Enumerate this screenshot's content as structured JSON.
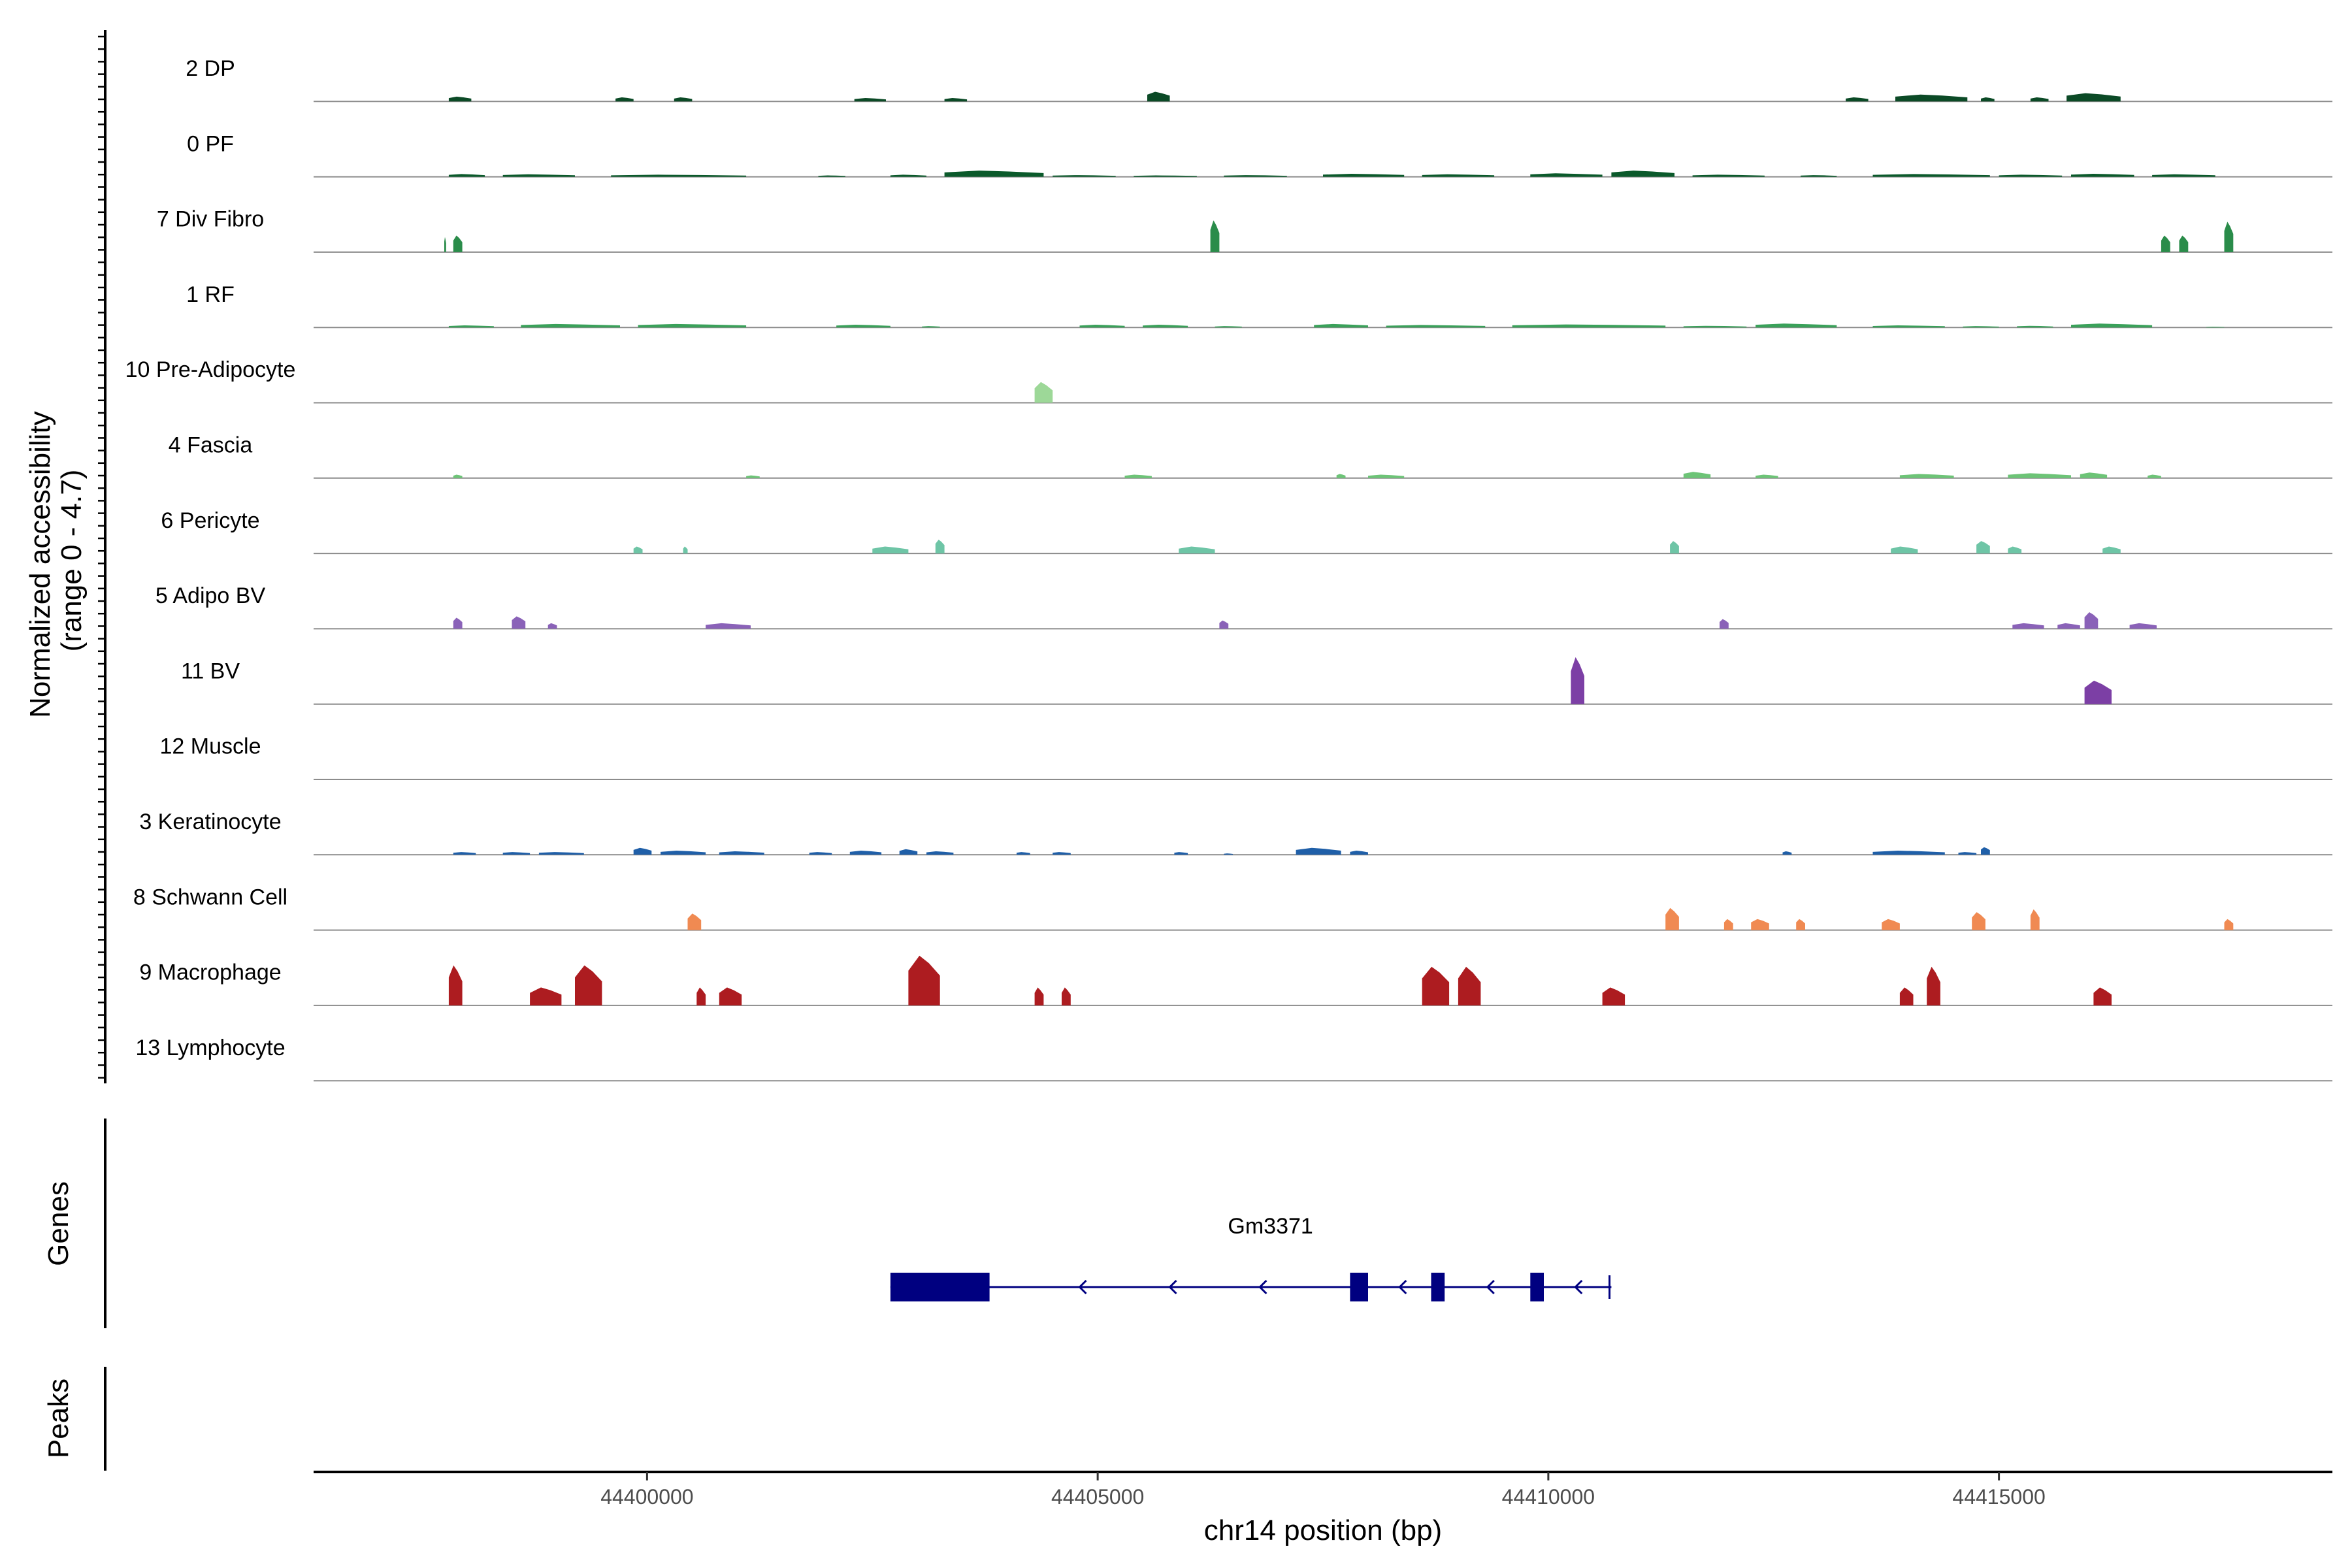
{
  "chart_data": {
    "type": "area",
    "title": "",
    "chromosome": "chr14",
    "xlabel": "chr14 position (bp)",
    "ylabel": "Normalized accessibility\n(range 0 - 4.7)",
    "ylim": [
      0,
      4.7
    ],
    "xlim": [
      44396300,
      44418700
    ],
    "x_ticks": [
      44400000,
      44405000,
      44410000,
      44415000
    ],
    "x_tick_labels": [
      "44400000",
      "44405000",
      "44410000",
      "44415000"
    ],
    "panels": {
      "genes": "Genes",
      "peaks": "Peaks"
    },
    "genes": [
      {
        "name": "Gm3371",
        "start": 44402700,
        "end": 44410700,
        "strand": "-",
        "color": "#000080",
        "exons": [
          [
            44402700,
            44403800
          ],
          [
            44407800,
            44408000
          ],
          [
            44408700,
            44408850
          ],
          [
            44409800,
            44409950
          ],
          [
            44410650,
            44410700
          ]
        ]
      }
    ],
    "peaks": [],
    "series": [
      {
        "name": "2 DP",
        "color": "#0b4a26",
        "regions": [
          [
            44397800,
            44398050,
            0.35
          ],
          [
            44399650,
            44399850,
            0.3
          ],
          [
            44400300,
            44400500,
            0.3
          ],
          [
            44402300,
            44402650,
            0.25
          ],
          [
            44403300,
            44403550,
            0.25
          ],
          [
            44405550,
            44405800,
            0.7
          ],
          [
            44413300,
            44413550,
            0.3
          ],
          [
            44413850,
            44414650,
            0.5
          ],
          [
            44414800,
            44414950,
            0.3
          ],
          [
            44415350,
            44415550,
            0.3
          ],
          [
            44415750,
            44416350,
            0.6
          ]
        ]
      },
      {
        "name": "0 PF",
        "color": "#0b5a2b",
        "regions": [
          [
            44397800,
            44398200,
            0.2
          ],
          [
            44398400,
            44399200,
            0.18
          ],
          [
            44399600,
            44401100,
            0.15
          ],
          [
            44401900,
            44402200,
            0.1
          ],
          [
            44402700,
            44403100,
            0.15
          ],
          [
            44403300,
            44404400,
            0.45
          ],
          [
            44404500,
            44405200,
            0.12
          ],
          [
            44405400,
            44406100,
            0.1
          ],
          [
            44406400,
            44407100,
            0.12
          ],
          [
            44407500,
            44408400,
            0.22
          ],
          [
            44408600,
            44409400,
            0.18
          ],
          [
            44409800,
            44410600,
            0.25
          ],
          [
            44410700,
            44411400,
            0.45
          ],
          [
            44411600,
            44412400,
            0.15
          ],
          [
            44412800,
            44413200,
            0.12
          ],
          [
            44413600,
            44414900,
            0.2
          ],
          [
            44415000,
            44415700,
            0.15
          ],
          [
            44415800,
            44416500,
            0.22
          ],
          [
            44416700,
            44417400,
            0.18
          ]
        ]
      },
      {
        "name": "7 Div Fibro",
        "color": "#2a8c4a",
        "regions": [
          [
            44397750,
            44397770,
            1.1
          ],
          [
            44397850,
            44397950,
            1.2
          ],
          [
            44406250,
            44406350,
            2.3
          ],
          [
            44416800,
            44416900,
            1.2
          ],
          [
            44417000,
            44417100,
            1.2
          ],
          [
            44417500,
            44417600,
            2.2
          ]
        ]
      },
      {
        "name": "1 RF",
        "color": "#3aa15a",
        "regions": [
          [
            44397800,
            44398300,
            0.15
          ],
          [
            44398600,
            44399700,
            0.25
          ],
          [
            44399900,
            44401100,
            0.25
          ],
          [
            44402100,
            44402700,
            0.2
          ],
          [
            44403050,
            44403250,
            0.1
          ],
          [
            44404800,
            44405300,
            0.2
          ],
          [
            44405500,
            44406000,
            0.2
          ],
          [
            44406300,
            44406600,
            0.1
          ],
          [
            44407400,
            44408000,
            0.25
          ],
          [
            44408200,
            44409300,
            0.18
          ],
          [
            44409600,
            44411300,
            0.22
          ],
          [
            44411500,
            44412200,
            0.12
          ],
          [
            44412300,
            44413200,
            0.28
          ],
          [
            44413600,
            44414400,
            0.15
          ],
          [
            44414600,
            44415000,
            0.1
          ],
          [
            44415200,
            44415600,
            0.12
          ],
          [
            44415800,
            44416700,
            0.28
          ],
          [
            44417300,
            44417500,
            0.05
          ]
        ]
      },
      {
        "name": "10 Pre-Adipocyte",
        "color": "#9dd898",
        "regions": [
          [
            44404300,
            44404500,
            1.5
          ]
        ]
      },
      {
        "name": "4 Fascia",
        "color": "#6dc477",
        "regions": [
          [
            44397850,
            44397950,
            0.25
          ],
          [
            44401100,
            44401250,
            0.2
          ],
          [
            44405300,
            44405600,
            0.25
          ],
          [
            44407650,
            44407750,
            0.3
          ],
          [
            44408000,
            44408400,
            0.25
          ],
          [
            44411500,
            44411800,
            0.45
          ],
          [
            44412300,
            44412550,
            0.25
          ],
          [
            44413900,
            44414500,
            0.3
          ],
          [
            44415100,
            44415800,
            0.35
          ],
          [
            44415900,
            44416200,
            0.4
          ],
          [
            44416650,
            44416800,
            0.25
          ]
        ]
      },
      {
        "name": "6 Pericyte",
        "color": "#6ec5a6",
        "regions": [
          [
            44399850,
            44399950,
            0.5
          ],
          [
            44400400,
            44400450,
            0.5
          ],
          [
            44402500,
            44402900,
            0.5
          ],
          [
            44403200,
            44403300,
            1.0
          ],
          [
            44405900,
            44406300,
            0.5
          ],
          [
            44411350,
            44411450,
            0.9
          ],
          [
            44413800,
            44414100,
            0.5
          ],
          [
            44414750,
            44414900,
            0.9
          ],
          [
            44415100,
            44415250,
            0.5
          ],
          [
            44416150,
            44416350,
            0.5
          ]
        ]
      },
      {
        "name": "5 Adipo BV",
        "color": "#8a62b8",
        "regions": [
          [
            44397850,
            44397950,
            0.8
          ],
          [
            44398500,
            44398650,
            0.9
          ],
          [
            44398900,
            44399000,
            0.4
          ],
          [
            44400650,
            44401150,
            0.4
          ],
          [
            44406350,
            44406450,
            0.6
          ],
          [
            44411900,
            44412000,
            0.7
          ],
          [
            44415150,
            44415500,
            0.4
          ],
          [
            44415650,
            44415900,
            0.4
          ],
          [
            44415950,
            44416100,
            1.2
          ],
          [
            44416450,
            44416750,
            0.4
          ]
        ]
      },
      {
        "name": "11 BV",
        "color": "#7c3fa5",
        "regions": [
          [
            44410250,
            44410400,
            3.4
          ],
          [
            44415950,
            44416250,
            1.7
          ]
        ]
      },
      {
        "name": "12 Muscle",
        "color": "#6a51a3",
        "regions": []
      },
      {
        "name": "3 Keratinocyte",
        "color": "#1f5fa8",
        "regions": [
          [
            44397850,
            44398100,
            0.2
          ],
          [
            44398400,
            44398700,
            0.2
          ],
          [
            44398800,
            44399300,
            0.2
          ],
          [
            44399850,
            44400050,
            0.5
          ],
          [
            44400150,
            44400650,
            0.3
          ],
          [
            44400800,
            44401300,
            0.25
          ],
          [
            44401800,
            44402050,
            0.2
          ],
          [
            44402250,
            44402600,
            0.3
          ],
          [
            44402800,
            44403000,
            0.4
          ],
          [
            44403100,
            44403400,
            0.25
          ],
          [
            44404100,
            44404250,
            0.2
          ],
          [
            44404500,
            44404700,
            0.2
          ],
          [
            44405850,
            44406000,
            0.2
          ],
          [
            44406400,
            44406500,
            0.1
          ],
          [
            44407200,
            44407700,
            0.5
          ],
          [
            44407800,
            44408000,
            0.3
          ],
          [
            44412600,
            44412700,
            0.25
          ],
          [
            44413600,
            44414400,
            0.3
          ],
          [
            44414550,
            44414750,
            0.2
          ],
          [
            44414800,
            44414900,
            0.55
          ]
        ]
      },
      {
        "name": "8 Schwann Cell",
        "color": "#f08a52",
        "regions": [
          [
            44400450,
            44400600,
            1.2
          ],
          [
            44411300,
            44411450,
            1.6
          ],
          [
            44411950,
            44412050,
            0.8
          ],
          [
            44412250,
            44412450,
            0.8
          ],
          [
            44412750,
            44412850,
            0.8
          ],
          [
            44413700,
            44413900,
            0.8
          ],
          [
            44414700,
            44414850,
            1.3
          ],
          [
            44415350,
            44415450,
            1.5
          ],
          [
            44417500,
            44417600,
            0.8
          ]
        ]
      },
      {
        "name": "9 Macrophage",
        "color": "#ad1c20",
        "regions": [
          [
            44397800,
            44397950,
            2.9
          ],
          [
            44398700,
            44399050,
            1.3
          ],
          [
            44399200,
            44399500,
            2.9
          ],
          [
            44400550,
            44400650,
            1.3
          ],
          [
            44400800,
            44401050,
            1.3
          ],
          [
            44402900,
            44403250,
            3.6
          ],
          [
            44404300,
            44404400,
            1.3
          ],
          [
            44404600,
            44404700,
            1.3
          ],
          [
            44408600,
            44408900,
            2.8
          ],
          [
            44409000,
            44409250,
            2.8
          ],
          [
            44410600,
            44410850,
            1.3
          ],
          [
            44413900,
            44414050,
            1.3
          ],
          [
            44414200,
            44414350,
            2.8
          ],
          [
            44416050,
            44416250,
            1.3
          ]
        ]
      },
      {
        "name": "13 Lymphocyte",
        "color": "#4d4d4d",
        "regions": []
      }
    ]
  }
}
